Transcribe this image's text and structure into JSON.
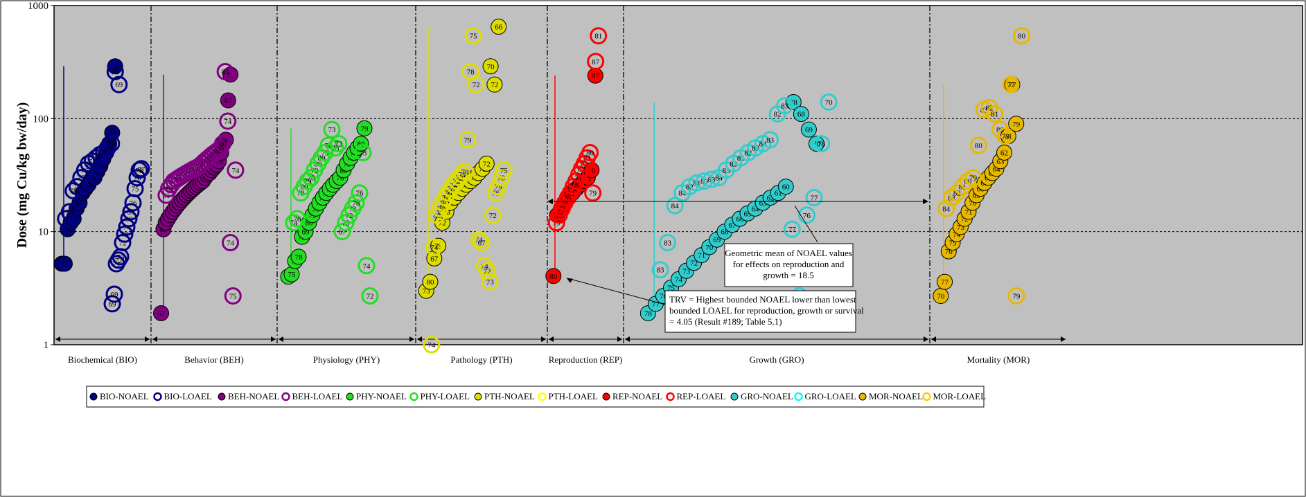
{
  "chart_data": {
    "type": "scatter",
    "title": "",
    "ylabel": "Dose (mg Cu/kg bw/day)",
    "xlabel": "",
    "yscale": "log",
    "ylim": [
      1,
      1000
    ],
    "y_ticks": [
      "1",
      "10",
      "100",
      "1000"
    ],
    "grid": "horizontal dashed lines at each decade",
    "categories": [
      "Biochemical (BIO)",
      "Behavior (BEH)",
      "Physiology (PHY)",
      "Pathology (PTH)",
      "Reproduction (REP)",
      "Growth (GRO)",
      "Mortality (MOR)"
    ],
    "legend": {
      "position": "bottom",
      "entries": [
        {
          "label": "BIO-NOAEL",
          "color": "#000080",
          "filled": true
        },
        {
          "label": "BIO-LOAEL",
          "color": "#000080",
          "filled": false
        },
        {
          "label": "BEH-NOAEL",
          "color": "#800080",
          "filled": true
        },
        {
          "label": "BEH-LOAEL",
          "color": "#800080",
          "filled": false
        },
        {
          "label": "PHY-NOAEL",
          "color": "#22dd22",
          "filled": true
        },
        {
          "label": "PHY-LOAEL",
          "color": "#22dd22",
          "filled": false
        },
        {
          "label": "PTH-NOAEL",
          "color": "#dddd00",
          "filled": true
        },
        {
          "label": "PTH-LOAEL",
          "color": "#ffff00",
          "filled": false
        },
        {
          "label": "REP-NOAEL",
          "color": "#ff0000",
          "filled": true
        },
        {
          "label": "REP-LOAEL",
          "color": "#ff0000",
          "filled": false
        },
        {
          "label": "GRO-NOAEL",
          "color": "#33cccc",
          "filled": true
        },
        {
          "label": "GRO-LOAEL",
          "color": "#00ffff",
          "filled": false
        },
        {
          "label": "MOR-NOAEL",
          "color": "#e6b800",
          "filled": true
        },
        {
          "label": "MOR-LOAEL",
          "color": "#ffcc00",
          "filled": false
        }
      ]
    },
    "annotations": [
      {
        "id": "geomean",
        "lines": [
          "Geometric mean of NOAEL values",
          "for effects on reproduction and",
          "growth  = 18.5"
        ],
        "value": 18.5
      },
      {
        "id": "trv",
        "lines": [
          "TRV =  Highest bounded  NOAEL lower than lowest",
          "bounded LOAEL for reproduction, growth or survival",
          "= 4.05 (Result #189; Table 5.1)"
        ],
        "value": 4.05
      }
    ],
    "series": [
      {
        "name": "BIO",
        "category": 0,
        "color": "#000080",
        "noael_labels": [
          "67",
          "71",
          "70",
          "78",
          "79",
          "69",
          "67",
          "76",
          "73",
          "72",
          "76",
          "74",
          "75",
          "77",
          "77",
          "75",
          "75",
          "69",
          "76"
        ],
        "noael_values": [
          5.2,
          5.2,
          10.5,
          12,
          13,
          16,
          18,
          22,
          24,
          26,
          29,
          30,
          34,
          38,
          44,
          50,
          60,
          75,
          290
        ],
        "loael_labels": [
          "77",
          "73",
          "78",
          "79",
          "75",
          "76",
          "69",
          "78",
          "74",
          "77",
          "77",
          "75",
          "79",
          "76",
          "69"
        ],
        "loael_values": [
          13,
          15,
          23,
          25,
          30,
          35,
          40,
          42,
          45,
          48,
          50,
          55,
          60,
          260,
          200
        ],
        "loael2_labels": [
          "69",
          "69",
          "71",
          "72",
          "73",
          "72",
          "73",
          "74",
          "68",
          "69",
          "76",
          "75",
          "76",
          "78",
          "77"
        ],
        "loael2_values": [
          2.3,
          2.8,
          5.2,
          5.6,
          6.0,
          8.0,
          9.5,
          11,
          13,
          15,
          18,
          24,
          30,
          35,
          36
        ]
      },
      {
        "name": "BEH",
        "category": 1,
        "color": "#800080",
        "noael_labels": [
          "67",
          "80",
          "80",
          "79",
          "78",
          "77",
          "76",
          "75",
          "74",
          "73",
          "72",
          "71",
          "70",
          "70",
          "69",
          "68",
          "68",
          "72",
          "73",
          "74",
          "74",
          "75",
          "76",
          "77",
          "78",
          "79",
          "79",
          "78",
          "68",
          "67",
          "72"
        ],
        "noael_values": [
          1.9,
          10.5,
          12,
          13,
          14,
          15,
          16,
          17,
          18,
          19,
          20,
          21,
          22,
          23,
          24,
          25,
          26,
          27,
          28,
          30,
          32,
          33,
          35,
          37,
          39,
          42,
          50,
          60,
          65,
          145,
          245
        ],
        "loael_labels": [
          "81",
          "80",
          "79",
          "78",
          "77",
          "76",
          "75",
          "74",
          "73",
          "72",
          "71",
          "70",
          "70",
          "71",
          "72",
          "73",
          "74",
          "75",
          "76",
          "77",
          "78",
          "79",
          "80",
          "81",
          "74",
          "74",
          "75",
          "74"
        ],
        "loael_values": [
          21,
          24,
          26,
          28,
          29,
          30,
          31,
          32,
          33,
          34,
          35,
          36,
          37,
          38,
          40,
          42,
          44,
          46,
          48,
          50,
          52,
          54,
          60,
          260,
          95,
          8,
          2.7,
          35
        ]
      },
      {
        "name": "PHY",
        "category": 2,
        "color": "#22dd22",
        "noael_labels": [
          "74",
          "75",
          "76",
          "78",
          "72",
          "69",
          "80",
          "79",
          "78",
          "77",
          "76",
          "75",
          "74",
          "73",
          "72",
          "78",
          "80",
          "79",
          "72",
          "78",
          "79",
          "80",
          "79"
        ],
        "noael_values": [
          4,
          4.2,
          5.5,
          6,
          9,
          10,
          12,
          14,
          16,
          18,
          20,
          22,
          24,
          26,
          28,
          30,
          35,
          40,
          45,
          50,
          55,
          60,
          82
        ],
        "loael_labels": [
          "74",
          "76",
          "78",
          "80",
          "79",
          "78",
          "79",
          "80",
          "80",
          "79",
          "78",
          "73",
          "73",
          "72",
          "67",
          "73",
          "72",
          "73",
          "78",
          "76",
          "73",
          "74",
          "72"
        ],
        "loael_values": [
          12,
          13,
          22,
          25,
          28,
          30,
          35,
          40,
          45,
          50,
          58,
          80,
          55,
          60,
          10,
          12,
          14,
          16,
          18,
          22,
          50,
          5,
          2.7
        ]
      },
      {
        "name": "PTH",
        "category": 3,
        "color": "#dddd00",
        "noael_labels": [
          "73",
          "80",
          "67",
          "79",
          "72",
          "78",
          "76",
          "80",
          "79",
          "78",
          "77",
          "76",
          "75",
          "74",
          "73",
          "72",
          "70",
          "72",
          "66"
        ],
        "noael_values": [
          3,
          3.6,
          5.8,
          7.5,
          12,
          15,
          18,
          20,
          22,
          24,
          26,
          28,
          30,
          33,
          36,
          40,
          290,
          200,
          650
        ],
        "loael_labels": [
          "74",
          "74",
          "80",
          "79",
          "78",
          "77",
          "76",
          "75",
          "74",
          "73",
          "72",
          "71",
          "70",
          "79",
          "78",
          "75",
          "72",
          "74",
          "67",
          "74",
          "72",
          "73",
          "72",
          "76",
          "79",
          "78",
          "75"
        ],
        "loael_values": [
          1,
          7.3,
          14,
          16,
          18,
          20,
          22,
          24,
          26,
          28,
          30,
          32,
          34,
          65,
          260,
          540,
          200,
          8.5,
          8,
          5,
          4.5,
          3.6,
          14,
          22,
          25,
          30,
          35
        ]
      },
      {
        "name": "REP",
        "category": 4,
        "color": "#ff0000",
        "noael_labels": [
          "80",
          "79",
          "78",
          "77",
          "76",
          "75",
          "74",
          "73",
          "72",
          "71",
          "70",
          "87"
        ],
        "noael_values": [
          4.05,
          14,
          16,
          18,
          20,
          22,
          24,
          26,
          28,
          30,
          35,
          240
        ],
        "loael_labels": [
          "79",
          "78",
          "77",
          "76",
          "75",
          "74",
          "73",
          "85",
          "84",
          "83",
          "82",
          "81",
          "80",
          "79",
          "87",
          "81"
        ],
        "loael_values": [
          12,
          14,
          16,
          18,
          20,
          22,
          25,
          28,
          32,
          36,
          40,
          45,
          50,
          22,
          320,
          540
        ]
      },
      {
        "name": "GRO",
        "category": 5,
        "color": "#33cccc",
        "noael_labels": [
          "78",
          "77",
          "76",
          "75",
          "74",
          "73",
          "72",
          "71",
          "70",
          "69",
          "68",
          "67",
          "66",
          "65",
          "64",
          "63",
          "62",
          "61",
          "60",
          "78",
          "68",
          "69",
          "70"
        ],
        "noael_values": [
          1.9,
          2.3,
          2.7,
          3.2,
          3.8,
          4.5,
          5.3,
          6.2,
          7.3,
          8.5,
          10,
          11.5,
          13,
          14.5,
          16,
          18,
          20,
          22,
          25,
          140,
          110,
          80,
          60
        ],
        "loael_labels": [
          "83",
          "83",
          "84",
          "84",
          "82",
          "81",
          "80",
          "83",
          "84",
          "83",
          "82",
          "81",
          "82",
          "83",
          "84",
          "83",
          "82",
          "83",
          "77",
          "78",
          "76",
          "77",
          "78",
          "70"
        ],
        "loael_values": [
          4.6,
          8,
          17,
          22,
          25,
          27,
          28,
          29,
          30,
          35,
          40,
          45,
          50,
          55,
          60,
          65,
          110,
          130,
          10.5,
          2.7,
          14,
          20,
          60,
          140
        ]
      },
      {
        "name": "MOR",
        "category": 6,
        "color": "#e6b800",
        "noael_labels": [
          "70",
          "77",
          "76",
          "75",
          "74",
          "73",
          "72",
          "71",
          "70",
          "69",
          "68",
          "67",
          "66",
          "65",
          "64",
          "63",
          "62",
          "61",
          "77",
          "79"
        ],
        "noael_values": [
          2.7,
          3.6,
          6.7,
          8,
          9.5,
          11,
          13,
          15,
          18,
          21,
          24,
          27,
          30,
          33,
          36,
          42,
          50,
          70,
          200,
          90
        ],
        "loael_labels": [
          "84",
          "83",
          "82",
          "81",
          "80",
          "79",
          "80",
          "83",
          "82",
          "81",
          "80",
          "79",
          "77",
          "79",
          "80"
        ],
        "loael_values": [
          16,
          20,
          22,
          25,
          28,
          30,
          58,
          120,
          125,
          110,
          80,
          70,
          200,
          2.7,
          540
        ]
      }
    ]
  }
}
